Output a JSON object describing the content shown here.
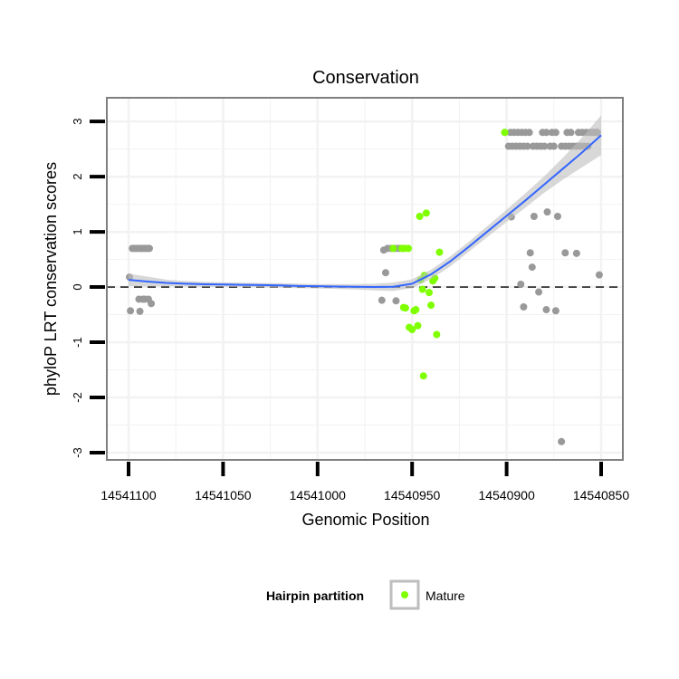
{
  "chart_data": {
    "type": "scatter",
    "title": "Conservation",
    "xlabel": "Genomic Position",
    "ylabel": "phyloP LRT conservation scores",
    "x_reversed": true,
    "xlim": [
      14541100,
      14540850
    ],
    "ylim": [
      -3.0,
      3.1
    ],
    "x_ticks": [
      14541100,
      14541050,
      14541000,
      14540950,
      14540900,
      14540850
    ],
    "x_tick_labels": [
      "14541100",
      "14541050",
      "14541000",
      "14540950",
      "14540900",
      "14540850"
    ],
    "y_ticks": [
      -3,
      -2,
      -1,
      0,
      1,
      2,
      3
    ],
    "y_tick_labels": [
      "-3",
      "-2",
      "-1",
      "0",
      "1",
      "2",
      "3"
    ],
    "reference_line": {
      "y": 0,
      "style": "dashed"
    },
    "legend": {
      "title": "Hairpin partition",
      "position": "bottom",
      "entries": [
        {
          "label": "Mature",
          "color": "#7FFF00"
        }
      ]
    },
    "colors": {
      "other": "#999999",
      "mature": "#7FFF00",
      "smooth": "#3366FF",
      "band": "#BEBEBE",
      "panel_border": "#7F7F7F",
      "grid": "#F2F2F2"
    },
    "series": [
      {
        "name": "Other",
        "color": "#999999",
        "points": [
          [
            14541099.5,
            0.18
          ],
          [
            14541099,
            -0.43
          ],
          [
            14541098,
            0.7
          ],
          [
            14541097,
            0.7
          ],
          [
            14541096,
            0.7
          ],
          [
            14541095,
            0.7
          ],
          [
            14541094.5,
            -0.22
          ],
          [
            14541094,
            -0.44
          ],
          [
            14541093.5,
            0.7
          ],
          [
            14541093,
            0.7
          ],
          [
            14541092,
            0.7
          ],
          [
            14541091,
            0.7
          ],
          [
            14541092.5,
            -0.22
          ],
          [
            14541091.5,
            -0.22
          ],
          [
            14541090,
            0.7
          ],
          [
            14541089.5,
            -0.22
          ],
          [
            14541089,
            0.7
          ],
          [
            14541088,
            -0.3
          ],
          [
            14540966,
            -0.24
          ],
          [
            14540965,
            0.67
          ],
          [
            14540964,
            0.26
          ],
          [
            14540963,
            0.7
          ],
          [
            14540961,
            0.7
          ],
          [
            14540959,
            0.7
          ],
          [
            14540958.5,
            -0.25
          ],
          [
            14540957,
            0.7
          ],
          [
            14540955,
            0.7
          ],
          [
            14540901,
            2.8
          ],
          [
            14540899,
            2.55
          ],
          [
            14540898,
            2.8
          ],
          [
            14540897,
            2.55
          ],
          [
            14540896,
            2.8
          ],
          [
            14540895,
            2.55
          ],
          [
            14540894,
            2.8
          ],
          [
            14540893,
            2.55
          ],
          [
            14540892,
            2.8
          ],
          [
            14540891,
            2.55
          ],
          [
            14540890,
            2.8
          ],
          [
            14540889,
            2.55
          ],
          [
            14540888,
            2.8
          ],
          [
            14540886,
            2.55
          ],
          [
            14540884,
            2.55
          ],
          [
            14540897.5,
            1.27
          ],
          [
            14540892.5,
            0.05
          ],
          [
            14540891,
            -0.36
          ],
          [
            14540887.5,
            0.62
          ],
          [
            14540886.5,
            0.36
          ],
          [
            14540885.5,
            1.28
          ],
          [
            14540883,
            -0.09
          ],
          [
            14540882,
            2.55
          ],
          [
            14540881,
            2.8
          ],
          [
            14540880,
            2.55
          ],
          [
            14540879,
            2.8
          ],
          [
            14540878.5,
            1.36
          ],
          [
            14540877,
            2.55
          ],
          [
            14540876,
            2.8
          ],
          [
            14540875,
            2.55
          ],
          [
            14540874,
            2.8
          ],
          [
            14540873,
            1.28
          ],
          [
            14540871,
            2.55
          ],
          [
            14540869,
            2.55
          ],
          [
            14540868,
            2.8
          ],
          [
            14540867,
            2.55
          ],
          [
            14540866,
            2.8
          ],
          [
            14540865,
            2.55
          ],
          [
            14540863,
            2.55
          ],
          [
            14540862,
            2.8
          ],
          [
            14540861,
            2.55
          ],
          [
            14540860,
            2.8
          ],
          [
            14540859,
            2.55
          ],
          [
            14540858,
            2.8
          ],
          [
            14540857,
            2.55
          ],
          [
            14540856,
            2.8
          ],
          [
            14540855,
            2.8
          ],
          [
            14540854,
            2.8
          ],
          [
            14540853,
            2.8
          ],
          [
            14540852,
            2.8
          ],
          [
            14540879,
            -0.41
          ],
          [
            14540874,
            -0.43
          ],
          [
            14540871,
            -2.8
          ],
          [
            14540869,
            0.62
          ],
          [
            14540863,
            0.61
          ],
          [
            14540851,
            0.22
          ]
        ]
      },
      {
        "name": "Mature",
        "color": "#7FFF00",
        "points": [
          [
            14540960,
            0.7
          ],
          [
            14540955.5,
            0.7
          ],
          [
            14540954,
            0.7
          ],
          [
            14540952,
            0.7
          ],
          [
            14540954.5,
            -0.37
          ],
          [
            14540953.5,
            -0.38
          ],
          [
            14540951.5,
            -0.73
          ],
          [
            14540950,
            -0.77
          ],
          [
            14540949,
            -0.43
          ],
          [
            14540948,
            -0.41
          ],
          [
            14540946,
            1.28
          ],
          [
            14540947,
            -0.7
          ],
          [
            14540945.5,
            0.13
          ],
          [
            14540944.5,
            -0.04
          ],
          [
            14540943.5,
            0.21
          ],
          [
            14540942.5,
            1.34
          ],
          [
            14540944,
            -1.61
          ],
          [
            14540941,
            -0.1
          ],
          [
            14540940,
            -0.33
          ],
          [
            14540939,
            0.11
          ],
          [
            14540938,
            0.16
          ],
          [
            14540937,
            -0.86
          ],
          [
            14540935.5,
            0.63
          ],
          [
            14540901,
            2.8
          ]
        ]
      }
    ],
    "smooth_fit": [
      [
        14541100,
        0.13
      ],
      [
        14541090,
        0.1
      ],
      [
        14541080,
        0.075
      ],
      [
        14541070,
        0.06
      ],
      [
        14541060,
        0.05
      ],
      [
        14541050,
        0.045
      ],
      [
        14541040,
        0.04
      ],
      [
        14541030,
        0.035
      ],
      [
        14541020,
        0.03
      ],
      [
        14541010,
        0.02
      ],
      [
        14541000,
        0.015
      ],
      [
        14540990,
        0.01
      ],
      [
        14540980,
        0.005
      ],
      [
        14540970,
        0.0
      ],
      [
        14540960,
        0.005
      ],
      [
        14540950,
        0.06
      ],
      [
        14540940,
        0.23
      ],
      [
        14540930,
        0.46
      ],
      [
        14540920,
        0.73
      ],
      [
        14540910,
        1.01
      ],
      [
        14540900,
        1.29
      ],
      [
        14540890,
        1.57
      ],
      [
        14540880,
        1.86
      ],
      [
        14540870,
        2.15
      ],
      [
        14540860,
        2.44
      ],
      [
        14540850,
        2.75
      ]
    ],
    "smooth_band_halfwidth": [
      [
        14541100,
        0.11
      ],
      [
        14541090,
        0.09
      ],
      [
        14541080,
        0.06
      ],
      [
        14541070,
        0.05
      ],
      [
        14541060,
        0.045
      ],
      [
        14541050,
        0.04
      ],
      [
        14541040,
        0.04
      ],
      [
        14541030,
        0.04
      ],
      [
        14541020,
        0.04
      ],
      [
        14541010,
        0.04
      ],
      [
        14541000,
        0.04
      ],
      [
        14540990,
        0.045
      ],
      [
        14540980,
        0.05
      ],
      [
        14540970,
        0.06
      ],
      [
        14540960,
        0.075
      ],
      [
        14540950,
        0.08
      ],
      [
        14540940,
        0.085
      ],
      [
        14540930,
        0.09
      ],
      [
        14540920,
        0.09
      ],
      [
        14540910,
        0.1
      ],
      [
        14540900,
        0.11
      ],
      [
        14540890,
        0.13
      ],
      [
        14540880,
        0.15
      ],
      [
        14540870,
        0.2
      ],
      [
        14540860,
        0.27
      ],
      [
        14540850,
        0.36
      ]
    ]
  }
}
